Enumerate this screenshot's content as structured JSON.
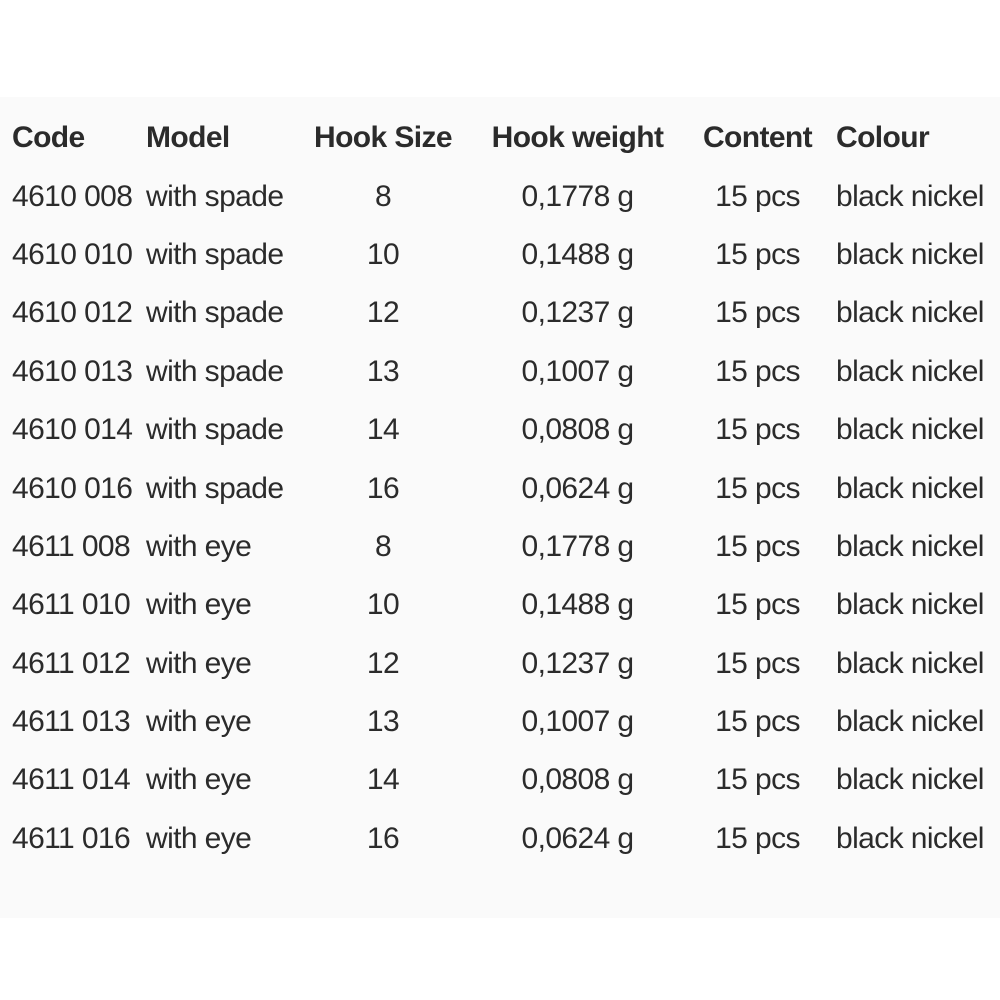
{
  "colors": {
    "background": "#ffffff",
    "panel": "#fafafa",
    "text": "#2b2b2b"
  },
  "table": {
    "columns": [
      {
        "key": "code",
        "label": "Code"
      },
      {
        "key": "model",
        "label": "Model"
      },
      {
        "key": "hook_size",
        "label": "Hook Size"
      },
      {
        "key": "hook_weight",
        "label": "Hook weight"
      },
      {
        "key": "content",
        "label": "Content"
      },
      {
        "key": "colour",
        "label": "Colour"
      }
    ],
    "rows": [
      {
        "code": "4610 008",
        "model": "with spade",
        "hook_size": "8",
        "hook_weight": "0,1778 g",
        "content": "15 pcs",
        "colour": "black nickel"
      },
      {
        "code": "4610 010",
        "model": "with spade",
        "hook_size": "10",
        "hook_weight": "0,1488 g",
        "content": "15 pcs",
        "colour": "black nickel"
      },
      {
        "code": "4610 012",
        "model": "with spade",
        "hook_size": "12",
        "hook_weight": "0,1237 g",
        "content": "15 pcs",
        "colour": "black nickel"
      },
      {
        "code": "4610 013",
        "model": "with spade",
        "hook_size": "13",
        "hook_weight": "0,1007 g",
        "content": "15 pcs",
        "colour": "black nickel"
      },
      {
        "code": "4610 014",
        "model": "with spade",
        "hook_size": "14",
        "hook_weight": "0,0808 g",
        "content": "15 pcs",
        "colour": "black nickel"
      },
      {
        "code": "4610 016",
        "model": "with spade",
        "hook_size": "16",
        "hook_weight": "0,0624 g",
        "content": "15 pcs",
        "colour": "black nickel"
      },
      {
        "code": "4611 008",
        "model": "with eye",
        "hook_size": "8",
        "hook_weight": "0,1778 g",
        "content": "15 pcs",
        "colour": "black nickel"
      },
      {
        "code": "4611 010",
        "model": "with eye",
        "hook_size": "10",
        "hook_weight": "0,1488 g",
        "content": "15 pcs",
        "colour": "black nickel"
      },
      {
        "code": "4611 012",
        "model": "with eye",
        "hook_size": "12",
        "hook_weight": "0,1237 g",
        "content": "15 pcs",
        "colour": "black nickel"
      },
      {
        "code": "4611 013",
        "model": "with eye",
        "hook_size": "13",
        "hook_weight": "0,1007 g",
        "content": "15 pcs",
        "colour": "black nickel"
      },
      {
        "code": "4611 014",
        "model": "with eye",
        "hook_size": "14",
        "hook_weight": "0,0808 g",
        "content": "15 pcs",
        "colour": "black nickel"
      },
      {
        "code": "4611 016",
        "model": "with eye",
        "hook_size": "16",
        "hook_weight": "0,0624 g",
        "content": "15 pcs",
        "colour": "black nickel"
      }
    ]
  }
}
